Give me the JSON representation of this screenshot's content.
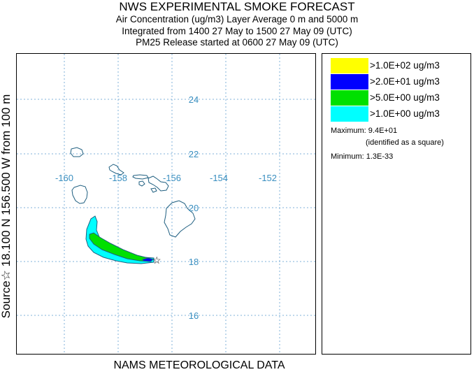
{
  "header": {
    "title": "NWS EXPERIMENTAL SMOKE FORECAST",
    "line1": "Air Concentration (ug/m3) Layer Average    0 m and  5000 m",
    "line2": "Integrated from 1400 27 May to 1500 27 May 09 (UTC)",
    "line3": "PM25 Release started at 0600 27 May 09 (UTC)"
  },
  "side_label": "Source☆ 18.100  N 156.500  W      from   100 m",
  "footer": "NAMS METEOROLOGICAL DATA",
  "map": {
    "longitude_labels": [
      "-160",
      "-158",
      "-156",
      "-154",
      "-152"
    ],
    "latitude_labels": [
      "24",
      "22",
      "20",
      "18",
      "16"
    ],
    "source_symbol": "☆",
    "source_lat": 18.1,
    "source_lon": -156.5,
    "colors": {
      "land_outline": "#1f5f80",
      "grid": "#7fb2d8",
      "tick_label": "#3a8fc0"
    }
  },
  "legend": {
    "items": [
      {
        "label": ">1.0E+02 ug/m3",
        "color": "#ffff00"
      },
      {
        "label": ">2.0E+01 ug/m3",
        "color": "#0000ff"
      },
      {
        "label": ">5.0E+00 ug/m3",
        "color": "#00e000"
      },
      {
        "label": ">1.0E+00 ug/m3",
        "color": "#00ffff"
      }
    ],
    "maximum_label": "Maximum:",
    "maximum_value": "9.4E+01",
    "maximum_note": "(identified as a square)",
    "minimum_label": "Minimum:",
    "minimum_value": "1.3E-33"
  }
}
